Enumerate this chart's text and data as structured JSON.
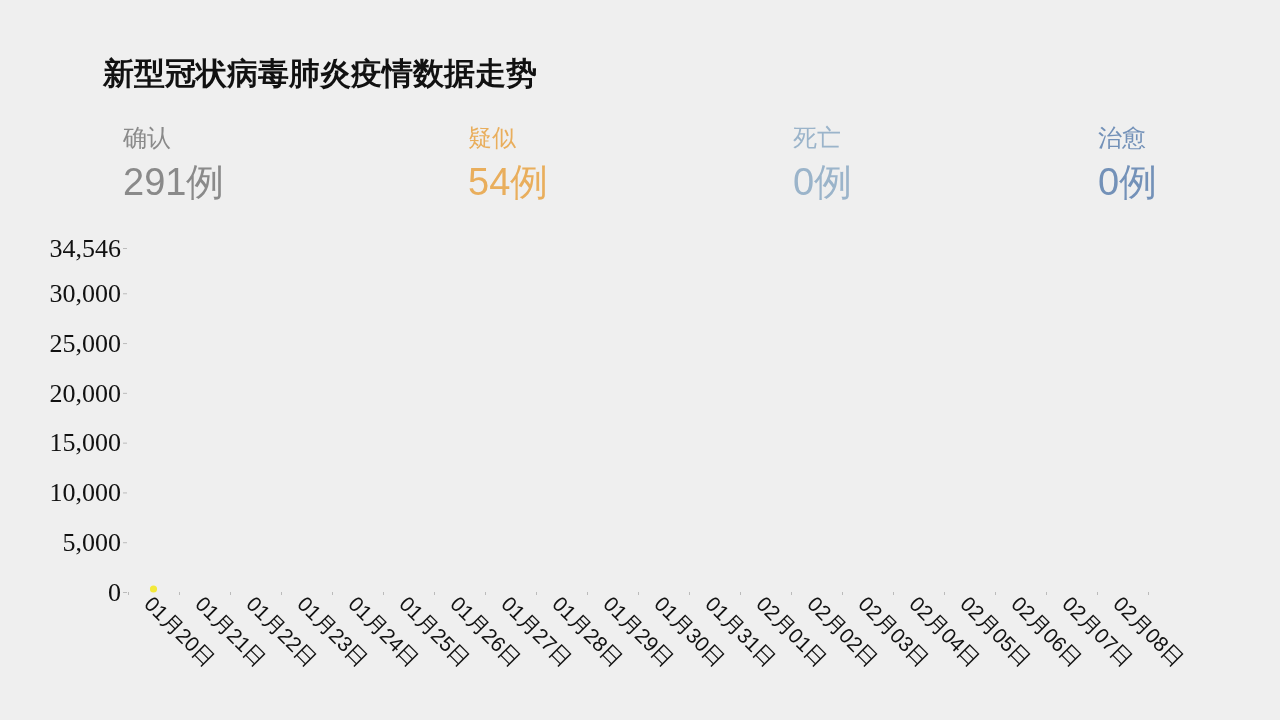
{
  "chart_data": [
    {
      "type": "other",
      "title": "新型冠状病毒肺炎疫情数据走势",
      "categories": [
        "确认",
        "疑似",
        "死亡",
        "治愈"
      ],
      "value_labels": [
        "291例",
        "54例",
        "0例",
        "0例"
      ],
      "colors": [
        "#8a8a8a",
        "#e9ae5c",
        "#9bb4ca",
        "#7391b8"
      ]
    },
    {
      "type": "line",
      "categories": [
        "01月20日",
        "01月21日",
        "01月22日",
        "01月23日",
        "01月24日",
        "01月25日",
        "01月26日",
        "01月27日",
        "01月28日",
        "01月29日",
        "01月30日",
        "01月31日",
        "02月01日",
        "02月02日",
        "02月03日",
        "02月04日",
        "02月05日",
        "02月06日",
        "02月07日",
        "02月08日"
      ],
      "series": [
        {
          "color": "#f3e93a",
          "values": [
            300,
            null,
            null,
            null,
            null,
            null,
            null,
            null,
            null,
            null,
            null,
            null,
            null,
            null,
            null,
            null,
            null,
            null,
            null,
            null
          ]
        }
      ],
      "ylim": [
        0,
        34546
      ],
      "yticks": [
        0,
        {
          "value": 5000,
          "label": "5,000"
        },
        {
          "value": 10000,
          "label": "10,000"
        },
        {
          "value": 15000,
          "label": "15,000"
        },
        {
          "value": 20000,
          "label": "20,000"
        },
        {
          "value": 25000,
          "label": "25,000"
        },
        {
          "value": 30000,
          "label": "30,000"
        },
        {
          "value": 34546,
          "label": "34,546"
        }
      ],
      "marker": "circle"
    }
  ]
}
